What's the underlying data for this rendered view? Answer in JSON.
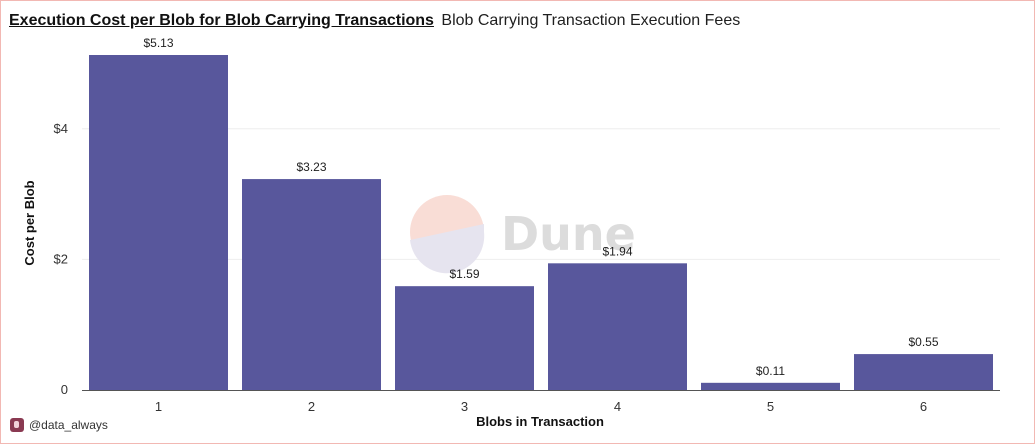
{
  "header": {
    "title": "Execution Cost per Blob for Blob Carrying Transactions",
    "subtitle": "Blob Carrying Transaction Execution Fees"
  },
  "watermark": {
    "text": "Dune"
  },
  "credit": {
    "handle": "@data_always",
    "icon": "user-avatar-icon"
  },
  "colors": {
    "bar": "#58579c",
    "grid": "#eeeeee",
    "axis": "#555555"
  },
  "chart_data": {
    "type": "bar",
    "categories": [
      "1",
      "2",
      "3",
      "4",
      "5",
      "6"
    ],
    "values": [
      5.13,
      3.23,
      1.59,
      1.94,
      0.11,
      0.55
    ],
    "data_labels": [
      "$5.13",
      "$3.23",
      "$1.59",
      "$1.94",
      "$0.11",
      "$0.55"
    ],
    "xlabel": "Blobs in Transaction",
    "ylabel": "Cost per Blob",
    "ylim": [
      0,
      5.13
    ],
    "yticks": [
      0,
      2,
      4
    ],
    "ytick_labels": [
      "0",
      "$2",
      "$4"
    ],
    "grid": true,
    "legend": "none"
  }
}
